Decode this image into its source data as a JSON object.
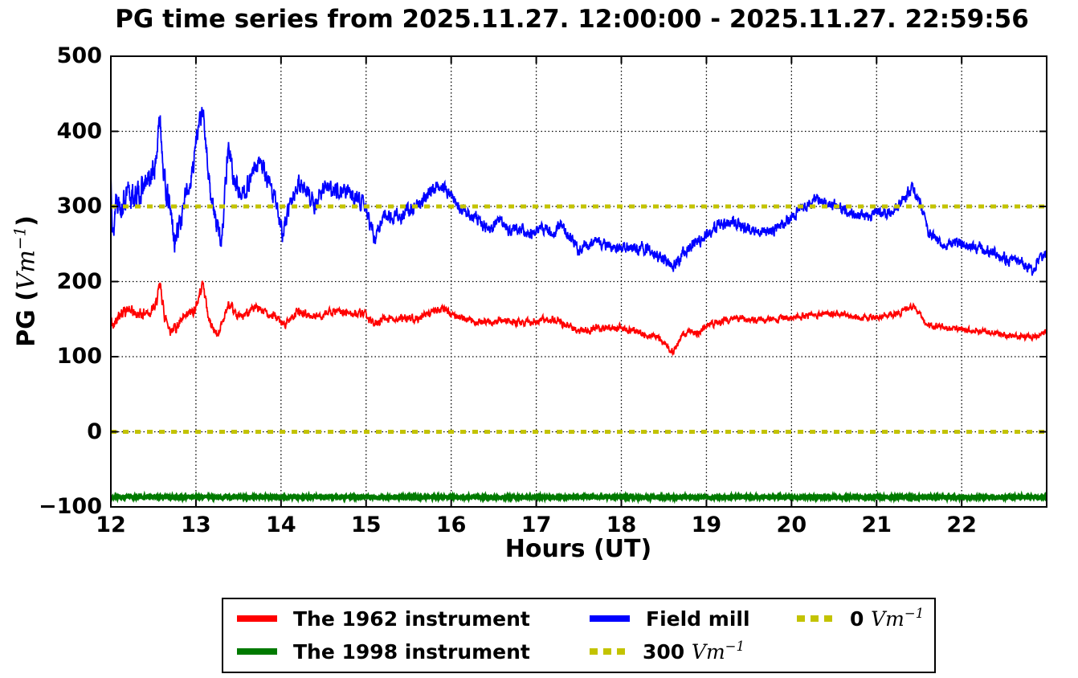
{
  "figure": {
    "background": "#ffffff"
  },
  "chart_data": {
    "type": "line",
    "title": "PG time series from 2025.11.27. 12:00:00 - 2025.11.27. 22:59:56",
    "xlabel": "Hours (UT)",
    "ylabel": {
      "prefix": "PG (",
      "math": "Vm",
      "exp": "−1",
      "suffix": ")"
    },
    "xlim": [
      12,
      22.99889
    ],
    "ylim": [
      -100,
      500
    ],
    "x_ticks": [
      12,
      13,
      14,
      15,
      16,
      17,
      18,
      19,
      20,
      21,
      22
    ],
    "x_tick_labels": [
      "12",
      "13",
      "14",
      "15",
      "16",
      "17",
      "18",
      "19",
      "20",
      "21",
      "22"
    ],
    "y_ticks": [
      -100,
      0,
      100,
      200,
      300,
      400,
      500
    ],
    "y_tick_labels": [
      "−100",
      "0",
      "100",
      "200",
      "300",
      "400",
      "500"
    ],
    "grid": {
      "on": true,
      "style": "dotted",
      "color": "#000000"
    },
    "axes_color": "#000000",
    "background": "#ffffff",
    "reference_lines": [
      {
        "name": "300-vm-reference-line",
        "value": 300,
        "color": "#c3c300",
        "style": "dashed",
        "width": 5
      },
      {
        "name": "0-vm-reference-line",
        "value": 0,
        "color": "#c3c300",
        "style": "dashed",
        "width": 5
      }
    ],
    "series": [
      {
        "name": "The 1962 instrument",
        "color": "#ff0000",
        "width": 1.8,
        "seed": 42,
        "noise": [
          [
            12,
            9
          ],
          [
            14.5,
            6
          ],
          [
            18,
            5.5
          ],
          [
            23,
            4.5
          ]
        ],
        "keypoints": [
          [
            12.0,
            150
          ],
          [
            12.03,
            138
          ],
          [
            12.06,
            152
          ],
          [
            12.1,
            158
          ],
          [
            12.2,
            162
          ],
          [
            12.3,
            156
          ],
          [
            12.45,
            160
          ],
          [
            12.52,
            165
          ],
          [
            12.58,
            195
          ],
          [
            12.63,
            155
          ],
          [
            12.7,
            136
          ],
          [
            12.8,
            142
          ],
          [
            12.9,
            155
          ],
          [
            13.0,
            165
          ],
          [
            13.08,
            200
          ],
          [
            13.15,
            150
          ],
          [
            13.25,
            128
          ],
          [
            13.38,
            168
          ],
          [
            13.45,
            158
          ],
          [
            13.55,
            152
          ],
          [
            13.65,
            165
          ],
          [
            13.75,
            162
          ],
          [
            13.85,
            158
          ],
          [
            13.95,
            152
          ],
          [
            14.02,
            142
          ],
          [
            14.1,
            150
          ],
          [
            14.2,
            160
          ],
          [
            14.4,
            152
          ],
          [
            14.6,
            160
          ],
          [
            14.8,
            158
          ],
          [
            15.0,
            155
          ],
          [
            15.1,
            142
          ],
          [
            15.2,
            152
          ],
          [
            15.4,
            150
          ],
          [
            15.6,
            152
          ],
          [
            15.8,
            160
          ],
          [
            15.9,
            165
          ],
          [
            16.0,
            158
          ],
          [
            16.2,
            148
          ],
          [
            16.4,
            146
          ],
          [
            16.6,
            148
          ],
          [
            16.8,
            145
          ],
          [
            17.0,
            148
          ],
          [
            17.2,
            150
          ],
          [
            17.4,
            140
          ],
          [
            17.5,
            133
          ],
          [
            17.7,
            139
          ],
          [
            17.9,
            136
          ],
          [
            18.0,
            139
          ],
          [
            18.2,
            132
          ],
          [
            18.4,
            127
          ],
          [
            18.52,
            118
          ],
          [
            18.6,
            104
          ],
          [
            18.7,
            126
          ],
          [
            18.8,
            134
          ],
          [
            18.9,
            131
          ],
          [
            19.0,
            142
          ],
          [
            19.2,
            148
          ],
          [
            19.4,
            151
          ],
          [
            19.6,
            148
          ],
          [
            19.8,
            150
          ],
          [
            20.0,
            151
          ],
          [
            20.2,
            155
          ],
          [
            20.4,
            158
          ],
          [
            20.6,
            156
          ],
          [
            20.8,
            152
          ],
          [
            21.0,
            152
          ],
          [
            21.2,
            156
          ],
          [
            21.3,
            160
          ],
          [
            21.42,
            168
          ],
          [
            21.5,
            158
          ],
          [
            21.6,
            142
          ],
          [
            21.8,
            138
          ],
          [
            22.0,
            136
          ],
          [
            22.2,
            133
          ],
          [
            22.4,
            132
          ],
          [
            22.6,
            128
          ],
          [
            22.8,
            126
          ],
          [
            22.999,
            132
          ]
        ]
      },
      {
        "name": "The 1998 instrument",
        "color": "#007a00",
        "width": 4,
        "seed": 7,
        "noise": [
          [
            12,
            1.6
          ],
          [
            22.999,
            1.6
          ]
        ],
        "keypoints": [
          [
            12,
            -87
          ],
          [
            22.999,
            -87
          ]
        ]
      },
      {
        "name": "Field mill",
        "color": "#0000ff",
        "width": 1.8,
        "seed": 13,
        "noise": [
          [
            12,
            20
          ],
          [
            14.5,
            13
          ],
          [
            16,
            9
          ],
          [
            23,
            9
          ]
        ],
        "keypoints": [
          [
            12.0,
            340
          ],
          [
            12.03,
            256
          ],
          [
            12.06,
            318
          ],
          [
            12.12,
            303
          ],
          [
            12.2,
            315
          ],
          [
            12.3,
            312
          ],
          [
            12.45,
            335
          ],
          [
            12.52,
            352
          ],
          [
            12.58,
            420
          ],
          [
            12.63,
            330
          ],
          [
            12.7,
            295
          ],
          [
            12.75,
            252
          ],
          [
            12.85,
            300
          ],
          [
            12.95,
            340
          ],
          [
            13.02,
            405
          ],
          [
            13.08,
            425
          ],
          [
            13.15,
            340
          ],
          [
            13.22,
            285
          ],
          [
            13.3,
            255
          ],
          [
            13.38,
            385
          ],
          [
            13.45,
            330
          ],
          [
            13.55,
            315
          ],
          [
            13.65,
            340
          ],
          [
            13.75,
            360
          ],
          [
            13.85,
            330
          ],
          [
            13.95,
            305
          ],
          [
            14.02,
            262
          ],
          [
            14.1,
            300
          ],
          [
            14.2,
            330
          ],
          [
            14.3,
            322
          ],
          [
            14.4,
            300
          ],
          [
            14.5,
            328
          ],
          [
            14.6,
            318
          ],
          [
            14.7,
            325
          ],
          [
            14.8,
            318
          ],
          [
            14.9,
            312
          ],
          [
            15.0,
            298
          ],
          [
            15.1,
            255
          ],
          [
            15.2,
            290
          ],
          [
            15.35,
            285
          ],
          [
            15.5,
            295
          ],
          [
            15.65,
            305
          ],
          [
            15.8,
            325
          ],
          [
            15.9,
            328
          ],
          [
            16.0,
            312
          ],
          [
            16.1,
            300
          ],
          [
            16.2,
            292
          ],
          [
            16.3,
            285
          ],
          [
            16.4,
            272
          ],
          [
            16.5,
            276
          ],
          [
            16.6,
            280
          ],
          [
            16.7,
            266
          ],
          [
            16.8,
            272
          ],
          [
            16.9,
            262
          ],
          [
            17.0,
            266
          ],
          [
            17.1,
            270
          ],
          [
            17.2,
            268
          ],
          [
            17.3,
            274
          ],
          [
            17.4,
            258
          ],
          [
            17.5,
            240
          ],
          [
            17.6,
            246
          ],
          [
            17.7,
            256
          ],
          [
            17.8,
            250
          ],
          [
            17.9,
            246
          ],
          [
            18.0,
            240
          ],
          [
            18.1,
            250
          ],
          [
            18.2,
            242
          ],
          [
            18.3,
            246
          ],
          [
            18.4,
            236
          ],
          [
            18.5,
            230
          ],
          [
            18.62,
            220
          ],
          [
            18.7,
            236
          ],
          [
            18.8,
            246
          ],
          [
            18.9,
            252
          ],
          [
            19.0,
            262
          ],
          [
            19.1,
            272
          ],
          [
            19.2,
            276
          ],
          [
            19.3,
            280
          ],
          [
            19.4,
            274
          ],
          [
            19.5,
            270
          ],
          [
            19.6,
            270
          ],
          [
            19.7,
            266
          ],
          [
            19.8,
            270
          ],
          [
            19.9,
            276
          ],
          [
            20.0,
            286
          ],
          [
            20.1,
            296
          ],
          [
            20.2,
            302
          ],
          [
            20.3,
            310
          ],
          [
            20.4,
            305
          ],
          [
            20.5,
            300
          ],
          [
            20.6,
            296
          ],
          [
            20.7,
            292
          ],
          [
            20.8,
            286
          ],
          [
            20.9,
            286
          ],
          [
            21.0,
            292
          ],
          [
            21.1,
            290
          ],
          [
            21.2,
            296
          ],
          [
            21.3,
            308
          ],
          [
            21.42,
            325
          ],
          [
            21.5,
            305
          ],
          [
            21.6,
            268
          ],
          [
            21.7,
            256
          ],
          [
            21.8,
            250
          ],
          [
            21.9,
            254
          ],
          [
            22.0,
            250
          ],
          [
            22.1,
            246
          ],
          [
            22.2,
            246
          ],
          [
            22.3,
            240
          ],
          [
            22.4,
            236
          ],
          [
            22.5,
            230
          ],
          [
            22.6,
            230
          ],
          [
            22.7,
            226
          ],
          [
            22.83,
            212
          ],
          [
            22.92,
            232
          ],
          [
            22.999,
            236
          ]
        ]
      }
    ],
    "legend": {
      "position": "below-chart",
      "entries": [
        {
          "label": "The 1962 instrument",
          "swatch": "solid",
          "color": "#ff0000"
        },
        {
          "label": "The 1998 instrument",
          "swatch": "solid",
          "color": "#007a00"
        },
        {
          "label": "Field mill",
          "swatch": "solid",
          "color": "#0000ff"
        },
        {
          "label": "300",
          "unit": "Vm",
          "exp": "−1",
          "swatch": "dashed",
          "color": "#c3c300"
        },
        {
          "label": "0",
          "unit": "Vm",
          "exp": "−1",
          "swatch": "dashed",
          "color": "#c3c300"
        }
      ]
    }
  }
}
